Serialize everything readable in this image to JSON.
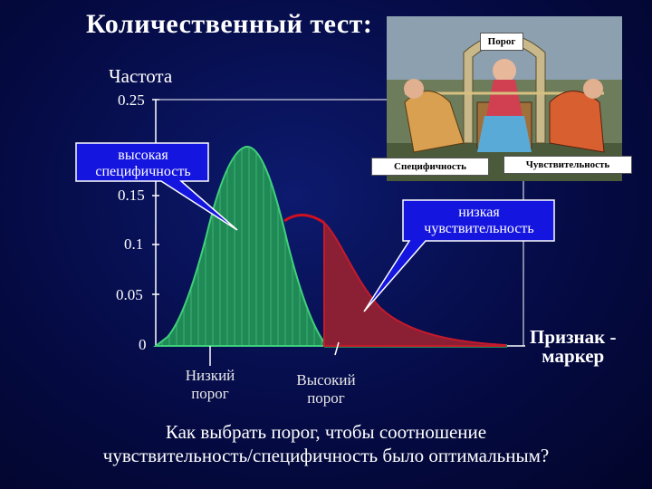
{
  "title": "Количественный тест:",
  "y_axis_label": "Частота",
  "y_ticks": [
    "0.25",
    "0.15",
    "0.1",
    "0.05",
    "0"
  ],
  "x_axis_label_line1": "Признак -",
  "x_axis_label_line2": "маркер",
  "low_threshold_line1": "Низкий",
  "low_threshold_line2": "порог",
  "high_threshold_line1": "Высокий",
  "high_threshold_line2": "порог",
  "callout_left_line1": "высокая",
  "callout_left_line2": "специфичность",
  "callout_right_line1": "низкая",
  "callout_right_line2": "чувствительность",
  "cartoon_tag_threshold": "Порог",
  "cartoon_tag_specificity": "Специфичность",
  "cartoon_tag_sensitivity": "Чувствительность",
  "question_line1": "Как выбрать порог, чтобы соотношение",
  "question_line2": "чувствительность/специфичность было оптимальным?",
  "colors": {
    "background": "#050b45",
    "healthy_fill": "#1f8a55",
    "diseased_fill": "#8b1f33",
    "diseased_curve": "#d01020",
    "callout_fill": "#1515e0",
    "axis": "#ffffff"
  }
}
